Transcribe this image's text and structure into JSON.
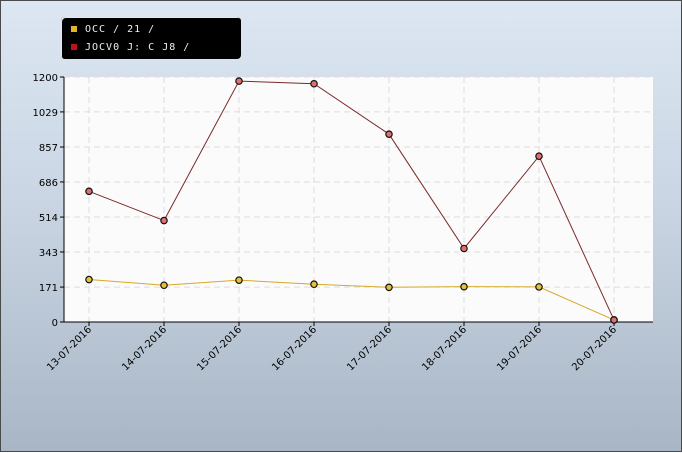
{
  "legend": {
    "items": [
      {
        "label": "OCC / 21 /",
        "color": "#e3b42a"
      },
      {
        "label": "JOCV0 J: C J8 /",
        "color": "#c0101a"
      }
    ]
  },
  "chart_data": {
    "type": "line",
    "title": "",
    "xlabel": "",
    "ylabel": "",
    "categories": [
      "13-07-2016",
      "14-07-2016",
      "15-07-2016",
      "16-07-2016",
      "17-07-2016",
      "18-07-2016",
      "19-07-2016",
      "20-07-2016"
    ],
    "ylim": [
      0,
      1200
    ],
    "yticks": [
      0,
      171,
      343,
      514,
      686,
      857,
      1029,
      1200
    ],
    "grid": true,
    "legend_position": "top-left",
    "series": [
      {
        "name": "OCC / 21 /",
        "color": "#d7a928",
        "marker_fill": "#e3c23a",
        "values": [
          208,
          180,
          205,
          185,
          170,
          173,
          172,
          10
        ]
      },
      {
        "name": "JOCV0 J: C J8 /",
        "color": "#7a2a2a",
        "marker_fill": "#e07070",
        "values": [
          640,
          497,
          1180,
          1167,
          920,
          360,
          812,
          10
        ]
      }
    ]
  }
}
